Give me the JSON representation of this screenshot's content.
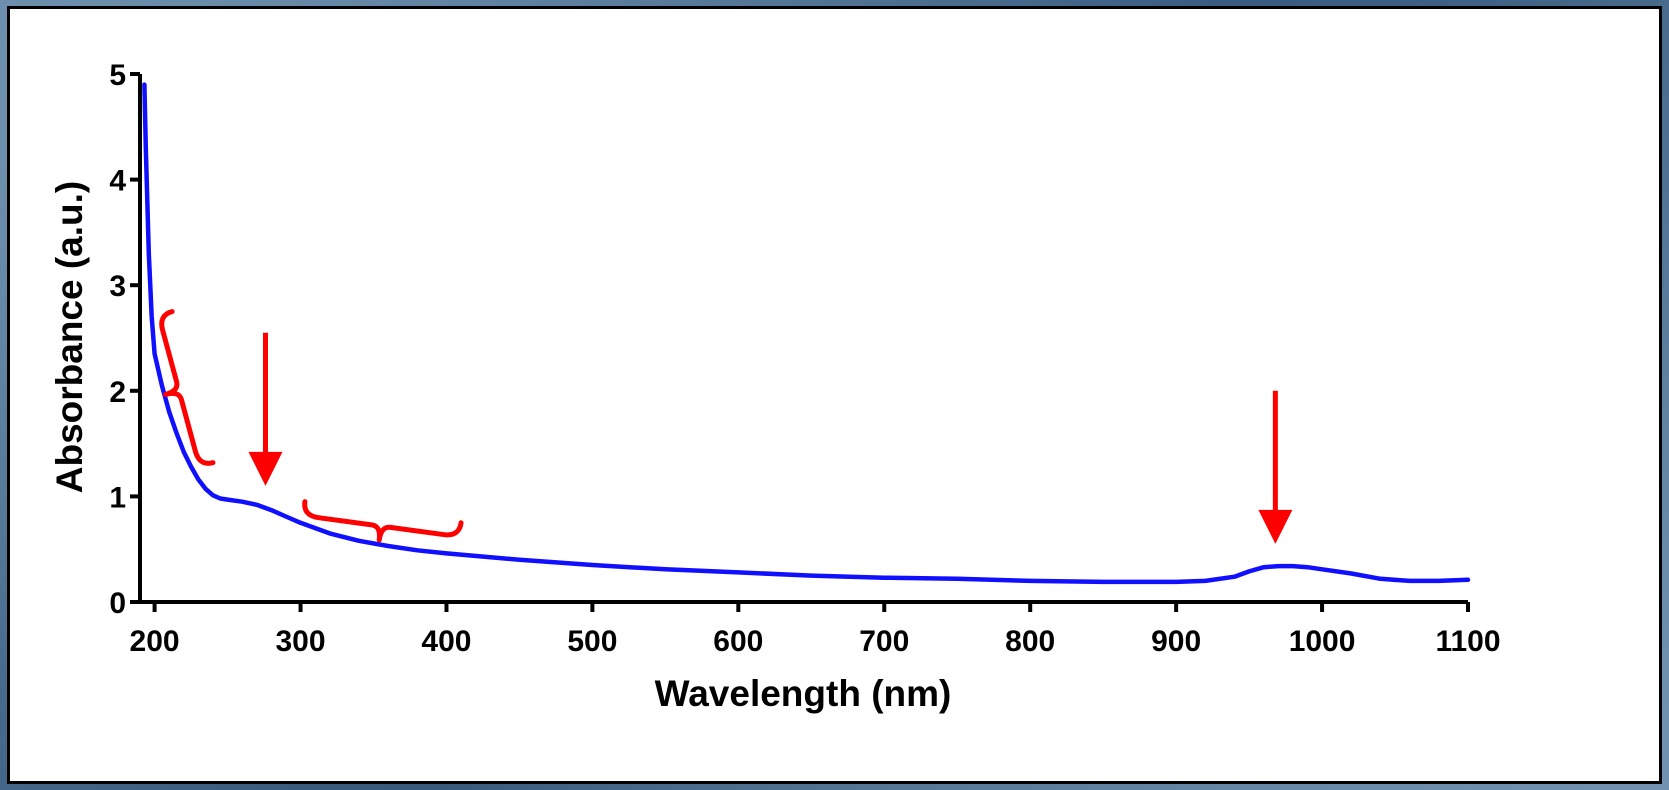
{
  "chart_data": {
    "type": "line",
    "title": "",
    "xlabel": "Wavelength (nm)",
    "ylabel": "Absorbance (a.u.)",
    "xlim": [
      190,
      1100
    ],
    "ylim": [
      0,
      5
    ],
    "x_ticks": [
      200,
      300,
      400,
      500,
      600,
      700,
      800,
      900,
      1000,
      1100
    ],
    "y_ticks": [
      0,
      1,
      2,
      3,
      4,
      5
    ],
    "grid": false,
    "colors": {
      "series": "#1010ff",
      "annotation": "#ff0000",
      "axis": "#000000"
    },
    "series": [
      {
        "x": [
          193,
          194,
          196,
          198,
          200,
          205,
          210,
          215,
          220,
          225,
          230,
          235,
          240,
          245,
          250,
          260,
          270,
          280,
          290,
          300,
          320,
          340,
          360,
          380,
          400,
          450,
          500,
          550,
          600,
          650,
          700,
          750,
          800,
          850,
          900,
          920,
          940,
          950,
          960,
          970,
          980,
          990,
          1000,
          1020,
          1040,
          1060,
          1080,
          1100
        ],
        "y": [
          4.9,
          4.3,
          3.3,
          2.7,
          2.35,
          2.05,
          1.8,
          1.6,
          1.42,
          1.28,
          1.16,
          1.07,
          1.01,
          0.98,
          0.97,
          0.95,
          0.92,
          0.87,
          0.81,
          0.75,
          0.65,
          0.58,
          0.53,
          0.49,
          0.46,
          0.4,
          0.35,
          0.31,
          0.28,
          0.25,
          0.23,
          0.22,
          0.2,
          0.19,
          0.19,
          0.2,
          0.24,
          0.29,
          0.33,
          0.34,
          0.34,
          0.33,
          0.31,
          0.27,
          0.22,
          0.2,
          0.2,
          0.21
        ]
      }
    ],
    "annotations": [
      {
        "type": "arrow",
        "x": 276,
        "y_from": 2.55,
        "y_to": 1.1
      },
      {
        "type": "arrow",
        "x": 968,
        "y_from": 2.0,
        "y_to": 0.55
      },
      {
        "type": "brace",
        "x_from": 212,
        "x_to": 240,
        "y_from": 2.75,
        "y_to": 1.32
      },
      {
        "type": "brace",
        "x_from": 303,
        "x_to": 410,
        "y_from": 0.95,
        "y_to": 0.75
      }
    ]
  }
}
